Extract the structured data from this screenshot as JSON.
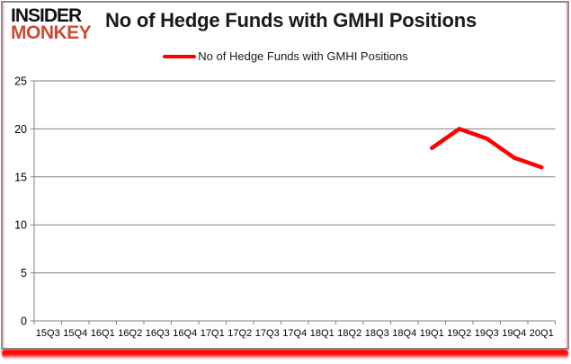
{
  "logo": {
    "line1": "INSIDER",
    "line2": "MONKEY"
  },
  "header": {
    "title": "No of Hedge Funds with GMHI Positions"
  },
  "legend": {
    "label": "No of Hedge Funds with GMHI Positions"
  },
  "colors": {
    "line": "#ff0000",
    "grid": "#7f7f7f",
    "axis": "#7f7f7f",
    "text": "#000000",
    "logo_black": "#111111",
    "logo_red": "#cc4b33",
    "frame_border": "#8c8c8c",
    "accent_bar": "#ff0000",
    "background": "#ffffff"
  },
  "chart_data": {
    "type": "line",
    "title": "No of Hedge Funds with GMHI Positions",
    "categories": [
      "15Q3",
      "15Q4",
      "16Q1",
      "16Q2",
      "16Q3",
      "16Q4",
      "17Q1",
      "17Q2",
      "17Q3",
      "17Q4",
      "18Q1",
      "18Q2",
      "18Q3",
      "18Q4",
      "19Q1",
      "19Q2",
      "19Q3",
      "19Q4",
      "20Q1"
    ],
    "series": [
      {
        "name": "No of Hedge Funds with GMHI Positions",
        "color": "#ff0000",
        "values": [
          null,
          null,
          null,
          null,
          null,
          null,
          null,
          null,
          null,
          null,
          null,
          null,
          null,
          null,
          18,
          20,
          19,
          17,
          16
        ]
      }
    ],
    "xlabel": "",
    "ylabel": "",
    "ylim": [
      0,
      25
    ],
    "ytick_step": 5,
    "grid": true,
    "legend_position": "top-center"
  }
}
